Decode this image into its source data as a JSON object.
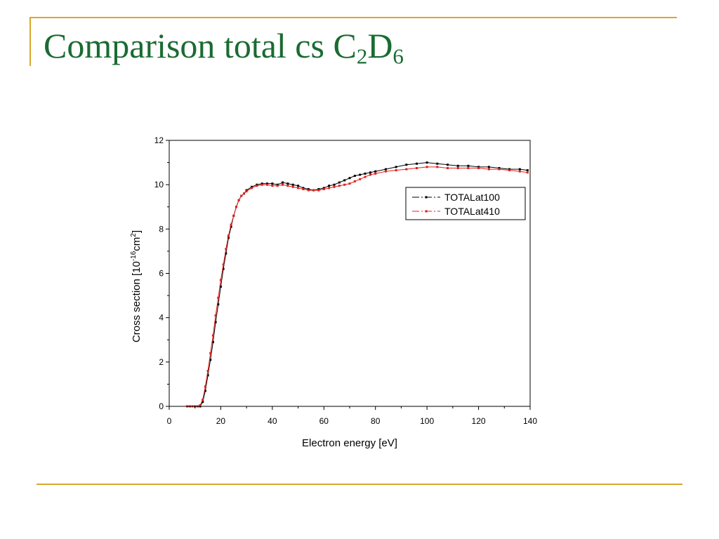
{
  "slide": {
    "title_main": "Comparison total cs C",
    "title_sub1": "2",
    "title_mid": "D",
    "title_sub2": "6",
    "accent_color": "#d9a72b",
    "title_color": "#1a6b32"
  },
  "chart_data": {
    "type": "line",
    "title": "",
    "xlabel": "Electron energy [eV]",
    "ylabel_base": "Cross section [10",
    "ylabel_exp1": "-16",
    "ylabel_mid": "cm",
    "ylabel_exp2": "2",
    "ylabel_end": "]",
    "xlim": [
      0,
      140
    ],
    "ylim": [
      0,
      12
    ],
    "x_ticks": [
      0,
      20,
      40,
      60,
      80,
      100,
      120,
      140
    ],
    "y_ticks": [
      0,
      2,
      4,
      6,
      8,
      10,
      12
    ],
    "x_tick_labels": [
      "0",
      "20",
      "40",
      "60",
      "80",
      "100",
      "120",
      "140"
    ],
    "y_tick_labels": [
      "0",
      "2",
      "4",
      "6",
      "8",
      "10",
      "12"
    ],
    "grid": false,
    "legend_position": "right, upper-middle",
    "series": [
      {
        "name": "TOTALat100",
        "color": "#000000",
        "x": [
          7,
          8,
          9,
          10,
          11,
          12,
          13,
          14,
          15,
          16,
          17,
          18,
          19,
          20,
          21,
          22,
          23,
          24,
          25,
          26,
          27,
          28,
          29,
          30,
          32,
          34,
          36,
          38,
          40,
          42,
          44,
          46,
          48,
          50,
          52,
          54,
          56,
          58,
          60,
          62,
          64,
          66,
          68,
          70,
          72,
          74,
          76,
          78,
          80,
          84,
          88,
          92,
          96,
          100,
          104,
          108,
          112,
          116,
          120,
          124,
          128,
          132,
          136,
          139
        ],
        "y": [
          0,
          0,
          0,
          0,
          0,
          0,
          0.2,
          0.7,
          1.4,
          2.1,
          2.9,
          3.8,
          4.6,
          5.4,
          6.2,
          6.9,
          7.6,
          8.1,
          8.6,
          9.0,
          9.3,
          9.5,
          9.6,
          9.75,
          9.9,
          10.0,
          10.05,
          10.05,
          10.05,
          10.0,
          10.1,
          10.05,
          10.0,
          9.95,
          9.85,
          9.8,
          9.75,
          9.8,
          9.85,
          9.95,
          10.0,
          10.1,
          10.2,
          10.3,
          10.4,
          10.45,
          10.5,
          10.55,
          10.6,
          10.7,
          10.8,
          10.9,
          10.95,
          11.0,
          10.95,
          10.9,
          10.85,
          10.85,
          10.8,
          10.8,
          10.75,
          10.7,
          10.7,
          10.65
        ]
      },
      {
        "name": "TOTALat410",
        "color": "#e0201c",
        "x": [
          7,
          8,
          9,
          10,
          11,
          12,
          13,
          14,
          15,
          16,
          17,
          18,
          19,
          20,
          21,
          22,
          23,
          24,
          25,
          26,
          27,
          28,
          29,
          30,
          32,
          34,
          36,
          38,
          40,
          42,
          44,
          46,
          48,
          50,
          52,
          54,
          56,
          58,
          60,
          62,
          64,
          66,
          68,
          70,
          72,
          74,
          76,
          78,
          80,
          84,
          88,
          92,
          96,
          100,
          104,
          108,
          112,
          116,
          120,
          124,
          128,
          132,
          136,
          139
        ],
        "y": [
          0,
          0,
          0,
          0,
          0,
          0.05,
          0.3,
          0.9,
          1.6,
          2.4,
          3.2,
          4.1,
          4.9,
          5.7,
          6.4,
          7.1,
          7.7,
          8.2,
          8.6,
          9.0,
          9.3,
          9.5,
          9.6,
          9.7,
          9.85,
          9.95,
          10.0,
          10.0,
          9.95,
          9.95,
          10.0,
          9.95,
          9.9,
          9.85,
          9.8,
          9.75,
          9.75,
          9.75,
          9.8,
          9.85,
          9.9,
          9.95,
          10.0,
          10.05,
          10.15,
          10.25,
          10.35,
          10.45,
          10.5,
          10.6,
          10.65,
          10.7,
          10.75,
          10.8,
          10.8,
          10.75,
          10.75,
          10.75,
          10.75,
          10.7,
          10.7,
          10.65,
          10.6,
          10.55
        ]
      }
    ]
  }
}
